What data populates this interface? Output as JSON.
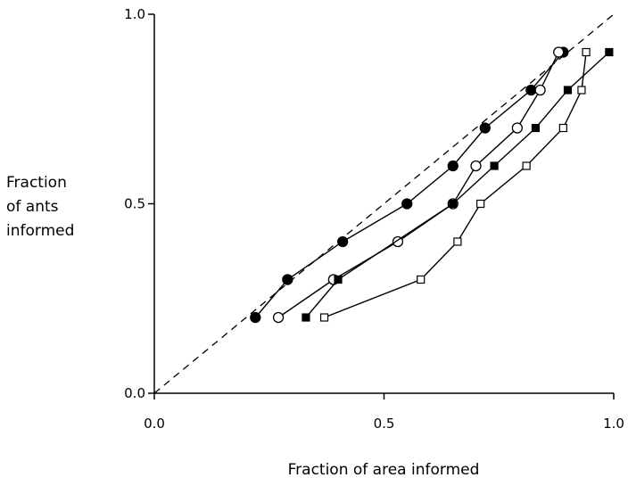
{
  "chart_data": {
    "type": "line",
    "title": "",
    "xlabel": "Fraction of area informed",
    "ylabel_lines": [
      "Fraction",
      "of ants",
      "informed"
    ],
    "xlim": [
      0,
      1
    ],
    "ylim": [
      0,
      1
    ],
    "x_ticks": [
      {
        "value": 0,
        "label": "0.0"
      },
      {
        "value": 0.5,
        "label": "0.5"
      },
      {
        "value": 1,
        "label": "1.0"
      }
    ],
    "y_ticks": [
      {
        "value": 0,
        "label": "0.0"
      },
      {
        "value": 0.5,
        "label": "0.5"
      },
      {
        "value": 1,
        "label": "1.0"
      }
    ],
    "grid": false,
    "reference_line": {
      "style": "dashed",
      "from": [
        0,
        0
      ],
      "to": [
        1,
        1
      ]
    },
    "series": [
      {
        "marker": "filled-circle",
        "points": [
          [
            0.22,
            0.2
          ],
          [
            0.29,
            0.3
          ],
          [
            0.41,
            0.4
          ],
          [
            0.55,
            0.5
          ],
          [
            0.65,
            0.6
          ],
          [
            0.72,
            0.7
          ],
          [
            0.82,
            0.8
          ],
          [
            0.89,
            0.9
          ]
        ]
      },
      {
        "marker": "open-circle",
        "points": [
          [
            0.27,
            0.2
          ],
          [
            0.39,
            0.3
          ],
          [
            0.53,
            0.4
          ],
          [
            0.65,
            0.5
          ],
          [
            0.7,
            0.6
          ],
          [
            0.79,
            0.7
          ],
          [
            0.84,
            0.8
          ],
          [
            0.88,
            0.9
          ]
        ]
      },
      {
        "marker": "filled-square",
        "points": [
          [
            0.33,
            0.2
          ],
          [
            0.4,
            0.3
          ],
          [
            0.65,
            0.5
          ],
          [
            0.74,
            0.6
          ],
          [
            0.83,
            0.7
          ],
          [
            0.9,
            0.8
          ],
          [
            0.99,
            0.9
          ]
        ]
      },
      {
        "marker": "open-square",
        "points": [
          [
            0.37,
            0.2
          ],
          [
            0.58,
            0.3
          ],
          [
            0.66,
            0.4
          ],
          [
            0.71,
            0.5
          ],
          [
            0.81,
            0.6
          ],
          [
            0.89,
            0.7
          ],
          [
            0.93,
            0.8
          ],
          [
            0.94,
            0.9
          ]
        ]
      }
    ]
  }
}
